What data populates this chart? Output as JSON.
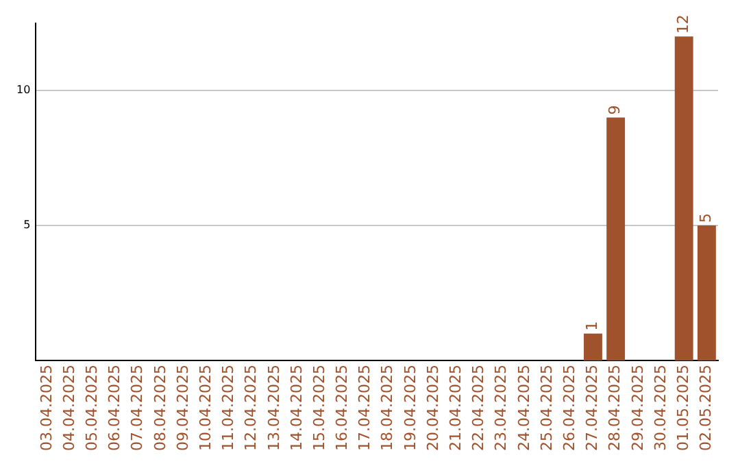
{
  "chart_data": {
    "type": "bar",
    "categories": [
      "03.04.2025",
      "04.04.2025",
      "05.04.2025",
      "06.04.2025",
      "07.04.2025",
      "08.04.2025",
      "09.04.2025",
      "10.04.2025",
      "11.04.2025",
      "12.04.2025",
      "13.04.2025",
      "14.04.2025",
      "15.04.2025",
      "16.04.2025",
      "17.04.2025",
      "18.04.2025",
      "19.04.2025",
      "20.04.2025",
      "21.04.2025",
      "22.04.2025",
      "23.04.2025",
      "24.04.2025",
      "25.04.2025",
      "26.04.2025",
      "27.04.2025",
      "28.04.2025",
      "29.04.2025",
      "30.04.2025",
      "01.05.2025",
      "02.05.2025"
    ],
    "values": [
      0,
      0,
      0,
      0,
      0,
      0,
      0,
      0,
      0,
      0,
      0,
      0,
      0,
      0,
      0,
      0,
      0,
      0,
      0,
      0,
      0,
      0,
      0,
      0,
      1,
      9,
      0,
      0,
      12,
      5
    ],
    "value_labels": [
      null,
      null,
      null,
      null,
      null,
      null,
      null,
      null,
      null,
      null,
      null,
      null,
      null,
      null,
      null,
      null,
      null,
      null,
      null,
      null,
      null,
      null,
      null,
      null,
      "1",
      "9",
      null,
      null,
      "12",
      "5"
    ],
    "color": "#a0522d",
    "ylim": [
      0,
      12.5
    ],
    "yticks": [
      5,
      10
    ],
    "grid": "y",
    "legend": false
  }
}
